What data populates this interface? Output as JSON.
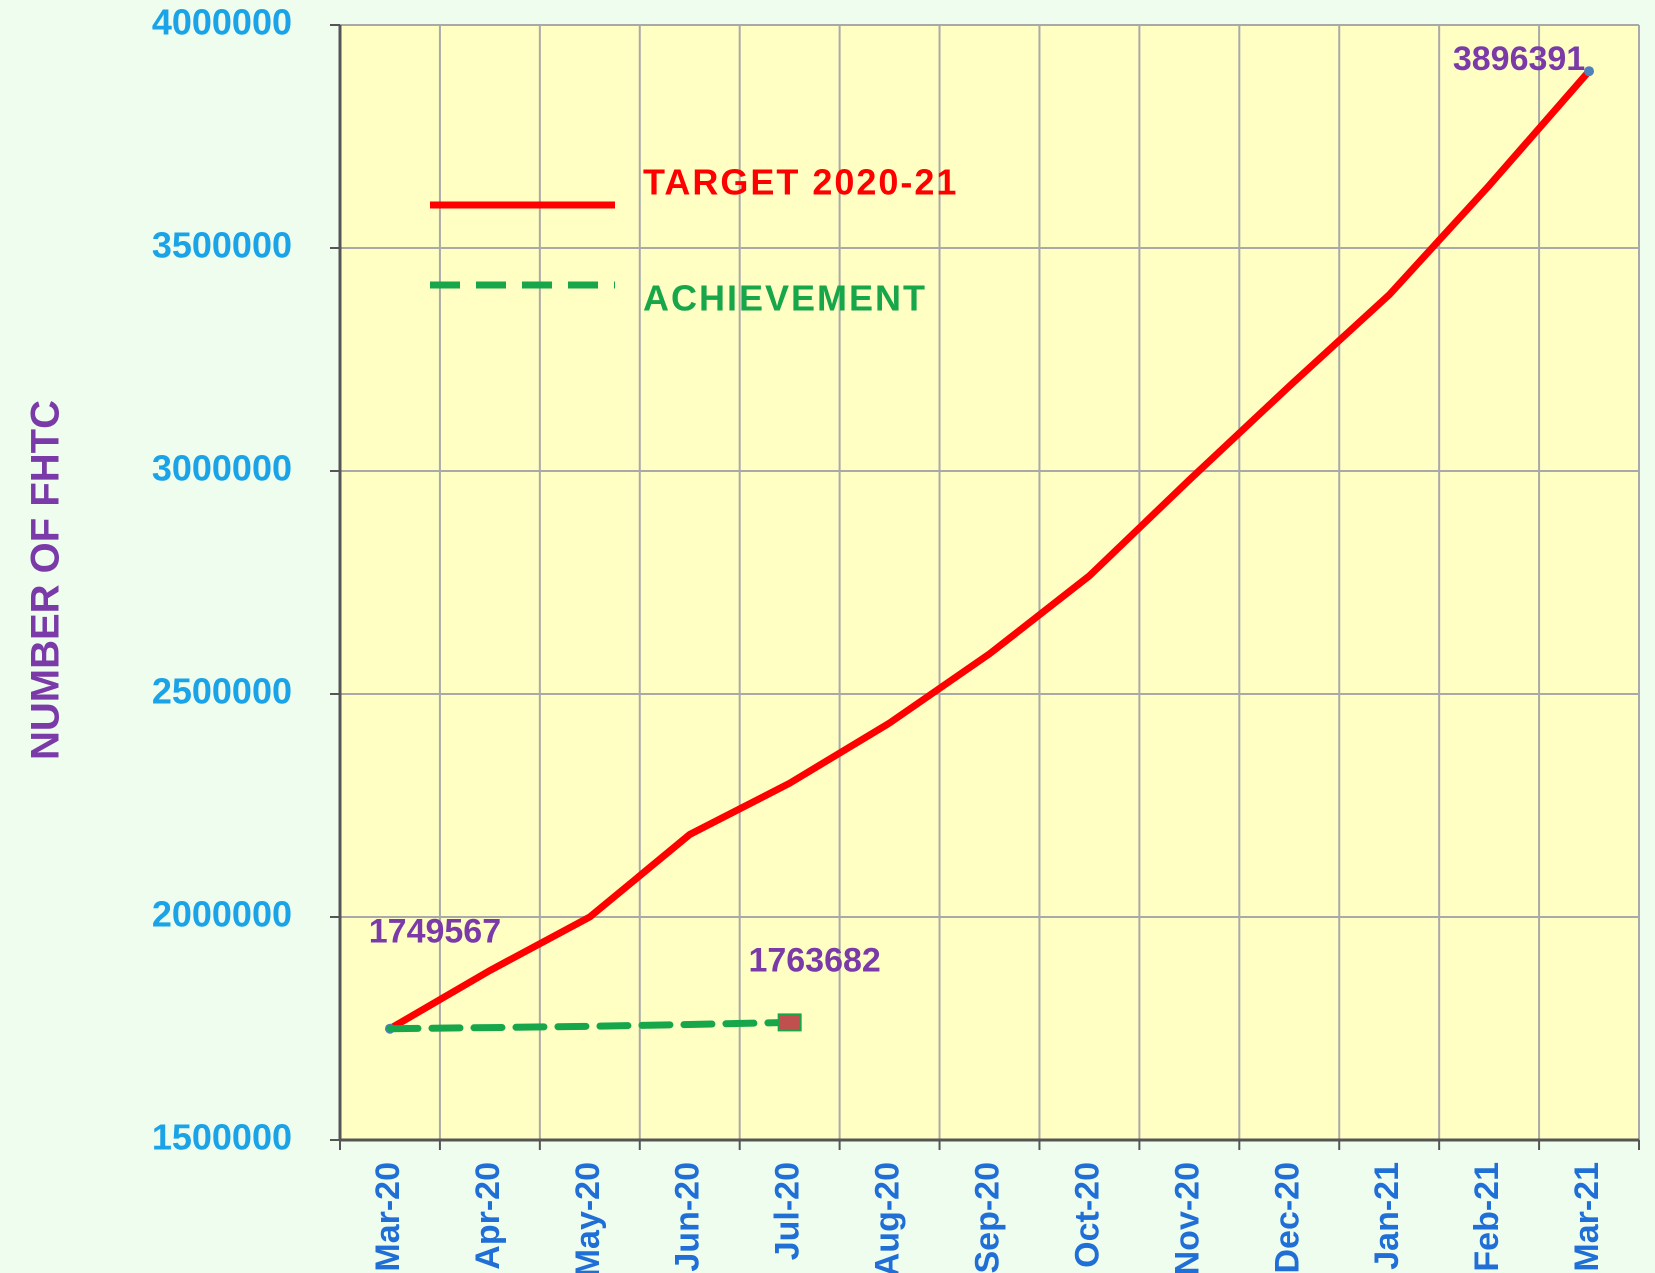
{
  "chart_data": {
    "type": "line",
    "y_label": "NUMBER OF FHTC",
    "categories": [
      "Mar-20",
      "Apr-20",
      "May-20",
      "Jun-20",
      "Jul-20",
      "Aug-20",
      "Sep-20",
      "Oct-20",
      "Nov-20",
      "Dec-20",
      "Jan-21",
      "Feb-21",
      "Mar-21"
    ],
    "series": [
      {
        "name": "TARGET 2020-21",
        "color": "#ff0000",
        "dash": false,
        "values": [
          1749567,
          1880000,
          2000000,
          2185000,
          2300000,
          2435000,
          2590000,
          2765000,
          2980000,
          3190000,
          3395000,
          3640000,
          3896391
        ],
        "value_labels": [
          "1749567",
          null,
          null,
          null,
          null,
          null,
          null,
          null,
          null,
          null,
          null,
          null,
          "3896391"
        ]
      },
      {
        "name": "ACHIEVEMENT",
        "color": "#17a64a",
        "dash": true,
        "values": [
          1749567,
          1752000,
          1755000,
          1759000,
          1763682,
          null,
          null,
          null,
          null,
          null,
          null,
          null,
          null
        ],
        "value_labels": [
          null,
          null,
          null,
          null,
          "1763682",
          null,
          null,
          null,
          null,
          null,
          null,
          null,
          null
        ]
      }
    ],
    "ylim": [
      1500000,
      4000000
    ],
    "yticks": [
      1500000,
      2000000,
      2500000,
      3000000,
      3500000,
      4000000
    ],
    "grid": true,
    "legend": "upper left"
  }
}
